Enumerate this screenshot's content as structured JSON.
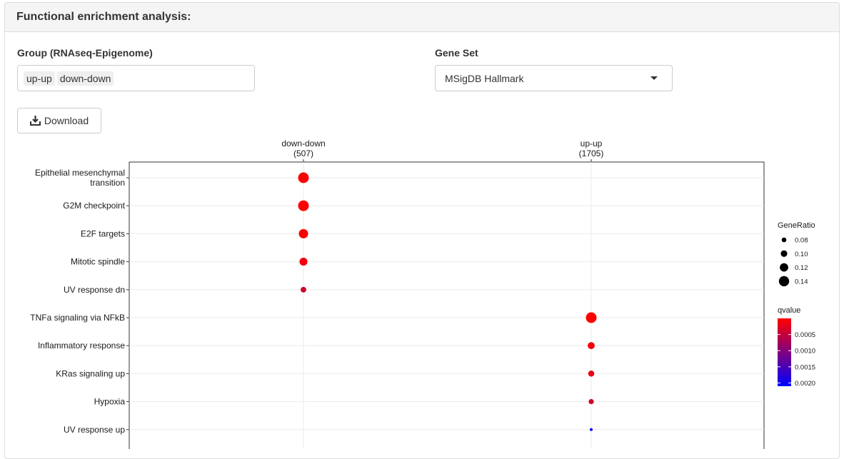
{
  "panel": {
    "title": "Functional enrichment analysis:"
  },
  "group": {
    "label": "Group (RNAseq-Epigenome)",
    "chips": [
      "up-up",
      "down-down"
    ]
  },
  "gene_set": {
    "label": "Gene Set",
    "selected": "MSigDB Hallmark"
  },
  "download": {
    "label": "Download",
    "icon": "download-icon"
  },
  "chart_data": {
    "type": "scatter",
    "columns": [
      {
        "name": "down-down",
        "count": "(507)"
      },
      {
        "name": "up-up",
        "count": "(1705)"
      }
    ],
    "rows": [
      [
        "Epithelial mesenchymal",
        "transition"
      ],
      [
        "G2M checkpoint"
      ],
      [
        "E2F targets"
      ],
      [
        "Mitotic spindle"
      ],
      [
        "UV response dn"
      ],
      [
        "TNFa signaling via NFkB"
      ],
      [
        "Inflammatory response"
      ],
      [
        "KRas signaling up"
      ],
      [
        "Hypoxia"
      ],
      [
        "UV response up"
      ]
    ],
    "points": [
      {
        "column": "down-down",
        "row": 0,
        "gene_ratio": 0.145,
        "qvalue": 0.0
      },
      {
        "column": "down-down",
        "row": 1,
        "gene_ratio": 0.145,
        "qvalue": 0.0
      },
      {
        "column": "down-down",
        "row": 2,
        "gene_ratio": 0.13,
        "qvalue": 0.0
      },
      {
        "column": "down-down",
        "row": 3,
        "gene_ratio": 0.115,
        "qvalue": 0.0001
      },
      {
        "column": "down-down",
        "row": 4,
        "gene_ratio": 0.09,
        "qvalue": 0.0004
      },
      {
        "column": "up-up",
        "row": 5,
        "gene_ratio": 0.145,
        "qvalue": 0.0
      },
      {
        "column": "up-up",
        "row": 6,
        "gene_ratio": 0.105,
        "qvalue": 0.0001
      },
      {
        "column": "up-up",
        "row": 7,
        "gene_ratio": 0.095,
        "qvalue": 0.0002
      },
      {
        "column": "up-up",
        "row": 8,
        "gene_ratio": 0.085,
        "qvalue": 0.0004
      },
      {
        "column": "up-up",
        "row": 9,
        "gene_ratio": 0.06,
        "qvalue": 0.0021
      }
    ],
    "legend_size": {
      "title": "GeneRatio",
      "entries": [
        {
          "label": "0.08",
          "value": 0.08
        },
        {
          "label": "0.10",
          "value": 0.1
        },
        {
          "label": "0.12",
          "value": 0.12
        },
        {
          "label": "0.14",
          "value": 0.14
        }
      ]
    },
    "legend_color": {
      "title": "qvalue",
      "ticks": [
        {
          "label": "0.0005",
          "value": 0.0005
        },
        {
          "label": "0.0010",
          "value": 0.001
        },
        {
          "label": "0.0015",
          "value": 0.0015
        },
        {
          "label": "0.0020",
          "value": 0.002
        }
      ],
      "range": [
        0.0,
        0.0021
      ],
      "low_color": "#ff0000",
      "high_color": "#0000ff"
    },
    "legend_placement": "right",
    "grid": true
  }
}
